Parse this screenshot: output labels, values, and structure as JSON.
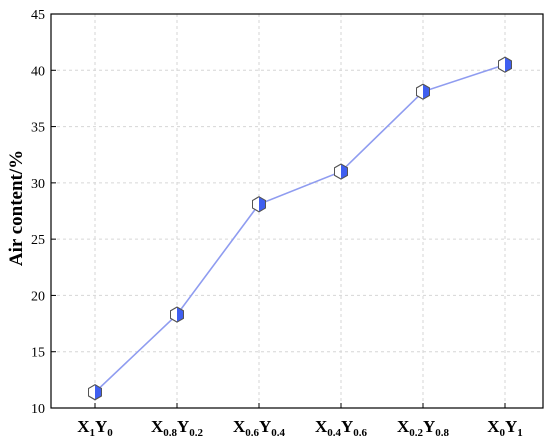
{
  "chart_data": {
    "type": "line",
    "ylabel": "Air content/%",
    "xlabel": "",
    "ylim": [
      10,
      45
    ],
    "yticks": [
      10,
      15,
      20,
      25,
      30,
      35,
      40,
      45
    ],
    "categories": [
      {
        "base": "X",
        "base_sub": "1",
        "second": "Y",
        "second_sub": "0"
      },
      {
        "base": "X",
        "base_sub": "0.8",
        "second": "Y",
        "second_sub": "0.2"
      },
      {
        "base": "X",
        "base_sub": "0.6",
        "second": "Y",
        "second_sub": "0.4"
      },
      {
        "base": "X",
        "base_sub": "0.4",
        "second": "Y",
        "second_sub": "0.6"
      },
      {
        "base": "X",
        "base_sub": "0.2",
        "second": "Y",
        "second_sub": "0.8"
      },
      {
        "base": "X",
        "base_sub": "0",
        "second": "Y",
        "second_sub": "1"
      }
    ],
    "series": [
      {
        "values": [
          11.4,
          18.3,
          28.1,
          31.0,
          38.1,
          40.5
        ]
      }
    ],
    "grid": true,
    "colors": {
      "line": "#8f9cf0",
      "marker_fill": "#3f5ff0",
      "grid": "#d6d6d6"
    }
  }
}
